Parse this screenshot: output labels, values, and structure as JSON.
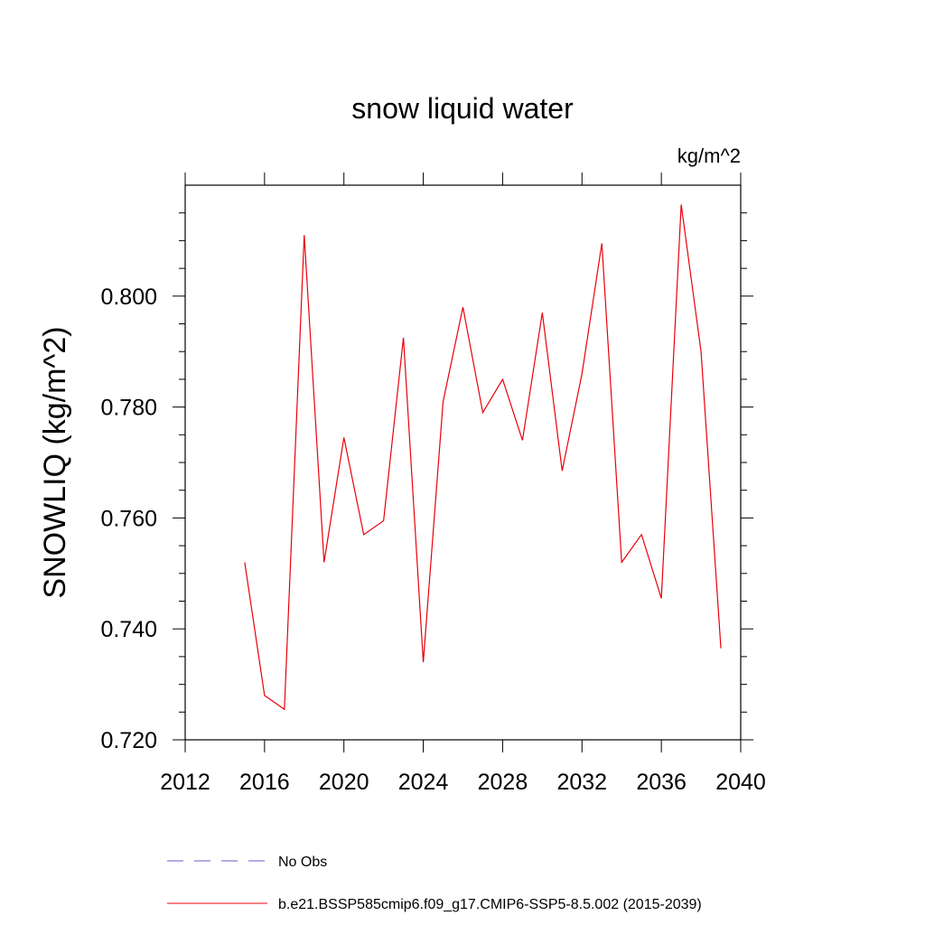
{
  "chart_data": {
    "type": "line",
    "title": "snow liquid water",
    "units": "kg/m^2",
    "xlabel": "",
    "ylabel": "SNOWLIQ  (kg/m^2)",
    "xlim": [
      2012,
      2040
    ],
    "ylim": [
      0.72,
      0.82
    ],
    "x_ticks": [
      2012,
      2016,
      2020,
      2024,
      2028,
      2032,
      2036,
      2040
    ],
    "x_tick_labels": [
      "2012",
      "2016",
      "2020",
      "2024",
      "2028",
      "2032",
      "2036",
      "2040"
    ],
    "y_ticks": [
      0.72,
      0.74,
      0.76,
      0.78,
      0.8
    ],
    "y_tick_labels": [
      "0.720",
      "0.740",
      "0.760",
      "0.780",
      "0.800"
    ],
    "series": [
      {
        "name": "b.e21.BSSP585cmip6.f09_g17.CMIP6-SSP5-8.5.002 (2015-2039)",
        "color": "#e8000b",
        "style": "solid",
        "x": [
          2015,
          2016,
          2017,
          2018,
          2019,
          2020,
          2021,
          2022,
          2023,
          2024,
          2025,
          2026,
          2027,
          2028,
          2029,
          2030,
          2031,
          2032,
          2033,
          2034,
          2035,
          2036,
          2037,
          2038,
          2039
        ],
        "values": [
          0.752,
          0.728,
          0.7255,
          0.811,
          0.752,
          0.7745,
          0.757,
          0.7595,
          0.7925,
          0.734,
          0.781,
          0.798,
          0.779,
          0.785,
          0.774,
          0.797,
          0.7685,
          0.786,
          0.8095,
          0.752,
          0.757,
          0.7455,
          0.8165,
          0.79,
          0.7365
        ]
      }
    ],
    "legend": [
      {
        "label": "No Obs",
        "color": "#6a5acd",
        "style": "dashed"
      },
      {
        "label": "b.e21.BSSP585cmip6.f09_g17.CMIP6-SSP5-8.5.002 (2015-2039)",
        "color": "#e8000b",
        "style": "solid"
      }
    ],
    "legend_position": "bottom"
  }
}
